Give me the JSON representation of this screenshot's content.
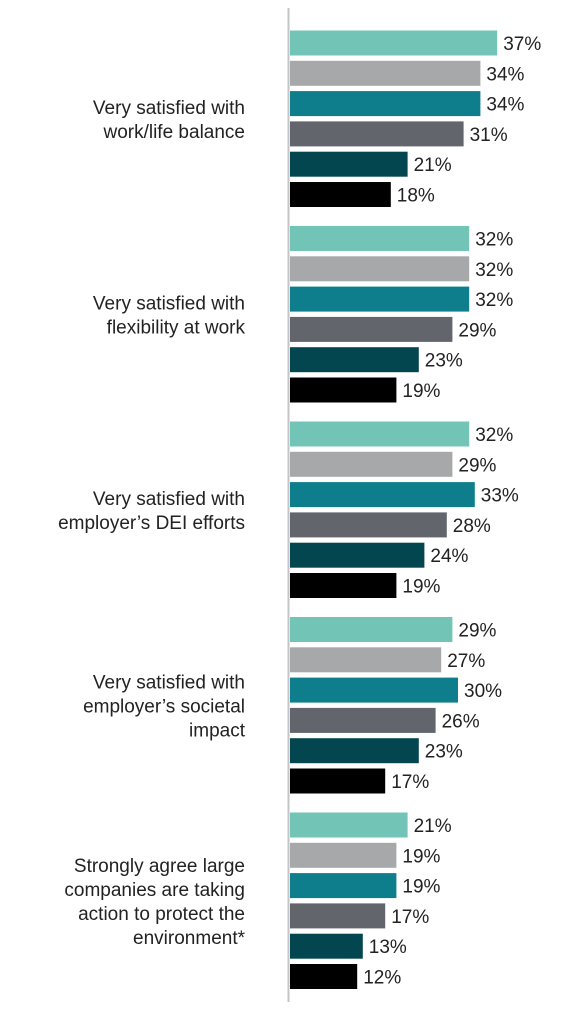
{
  "chart_data": {
    "type": "bar",
    "orientation": "horizontal",
    "value_suffix": "%",
    "categories": [
      "Very satisfied with work/life balance",
      "Very satisfied with flexibility at work",
      "Very satisfied with employer’s DEI efforts",
      "Very satisfied with employer’s societal impact",
      "Strongly agree large companies are taking action to protect the environment*"
    ],
    "category_lines": [
      [
        "Very satisfied with",
        "work/life balance"
      ],
      [
        "Very satisfied with",
        "flexibility at work"
      ],
      [
        "Very satisfied with",
        "employer’s DEI efforts"
      ],
      [
        "Very satisfied with",
        "employer’s societal",
        "impact"
      ],
      [
        "Strongly agree large",
        "companies are taking",
        "action to protect the",
        "environment*"
      ]
    ],
    "series": [
      {
        "color": "#72c4b6",
        "values": [
          37,
          32,
          32,
          29,
          21
        ]
      },
      {
        "color": "#a6a8aa",
        "values": [
          34,
          32,
          29,
          27,
          19
        ]
      },
      {
        "color": "#0e7e8c",
        "values": [
          34,
          32,
          33,
          30,
          19
        ]
      },
      {
        "color": "#62656b",
        "values": [
          31,
          29,
          28,
          26,
          17
        ]
      },
      {
        "color": "#044650",
        "values": [
          21,
          23,
          24,
          23,
          13
        ]
      },
      {
        "color": "#000000",
        "values": [
          18,
          19,
          19,
          17,
          12
        ]
      }
    ],
    "xlim": [
      0,
      40
    ],
    "grid": false,
    "legend": "none"
  }
}
